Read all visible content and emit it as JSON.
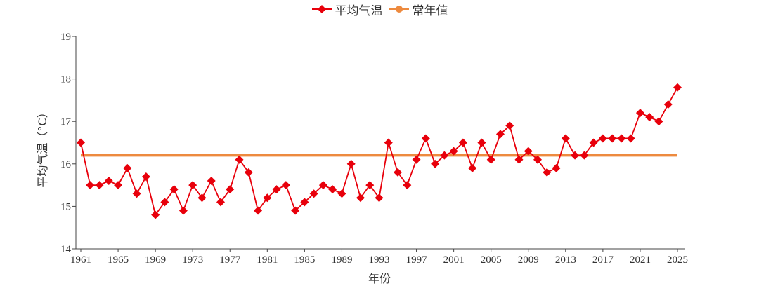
{
  "legend": {
    "items": [
      {
        "label": "平均气温",
        "color": "#e8000b",
        "marker": "diamond"
      },
      {
        "label": "常年值",
        "color": "#ed8a3f",
        "marker": "circle"
      }
    ]
  },
  "axes": {
    "xlabel": "年份",
    "ylabel": "平均气温（°C）",
    "x_ticks": [
      "1961",
      "1965",
      "1969",
      "1973",
      "1977",
      "1981",
      "1985",
      "1989",
      "1993",
      "1997",
      "2001",
      "2005",
      "2009",
      "2013",
      "2017",
      "2021",
      "2025"
    ],
    "y_ticks": [
      "14",
      "15",
      "16",
      "17",
      "18",
      "19"
    ]
  },
  "chart_data": {
    "type": "line",
    "title": "",
    "xlabel": "年份",
    "ylabel": "平均气温（°C）",
    "ylim": [
      14,
      19
    ],
    "xlim": [
      1961,
      2025
    ],
    "grid": false,
    "legend_position": "top-center",
    "x": [
      1961,
      1962,
      1963,
      1964,
      1965,
      1966,
      1967,
      1968,
      1969,
      1970,
      1971,
      1972,
      1973,
      1974,
      1975,
      1976,
      1977,
      1978,
      1979,
      1980,
      1981,
      1982,
      1983,
      1984,
      1985,
      1986,
      1987,
      1988,
      1989,
      1990,
      1991,
      1992,
      1993,
      1994,
      1995,
      1996,
      1997,
      1998,
      1999,
      2000,
      2001,
      2002,
      2003,
      2004,
      2005,
      2006,
      2007,
      2008,
      2009,
      2010,
      2011,
      2012,
      2013,
      2014,
      2015,
      2016,
      2017,
      2018,
      2019,
      2020,
      2021,
      2022,
      2023,
      2024,
      2025
    ],
    "series": [
      {
        "name": "平均气温",
        "color": "#e8000b",
        "marker": "diamond",
        "values": [
          16.5,
          15.5,
          15.5,
          15.6,
          15.5,
          15.9,
          15.3,
          15.7,
          14.8,
          15.1,
          15.4,
          14.9,
          15.5,
          15.2,
          15.6,
          15.1,
          15.4,
          16.1,
          15.8,
          14.9,
          15.2,
          15.4,
          15.5,
          14.9,
          15.1,
          15.3,
          15.5,
          15.4,
          15.3,
          16.0,
          15.2,
          15.5,
          15.2,
          16.5,
          15.8,
          15.5,
          16.1,
          16.6,
          16.0,
          16.2,
          16.3,
          16.5,
          15.9,
          16.5,
          16.1,
          16.7,
          16.9,
          16.1,
          16.3,
          16.1,
          15.8,
          15.9,
          16.6,
          16.2,
          16.2,
          16.5,
          16.6,
          16.6,
          16.6,
          16.6,
          17.2,
          17.1,
          17.0,
          17.4,
          17.8
        ]
      },
      {
        "name": "常年值",
        "color": "#ed8a3f",
        "marker": "none",
        "values": [
          16.2,
          16.2
        ]
      }
    ]
  }
}
